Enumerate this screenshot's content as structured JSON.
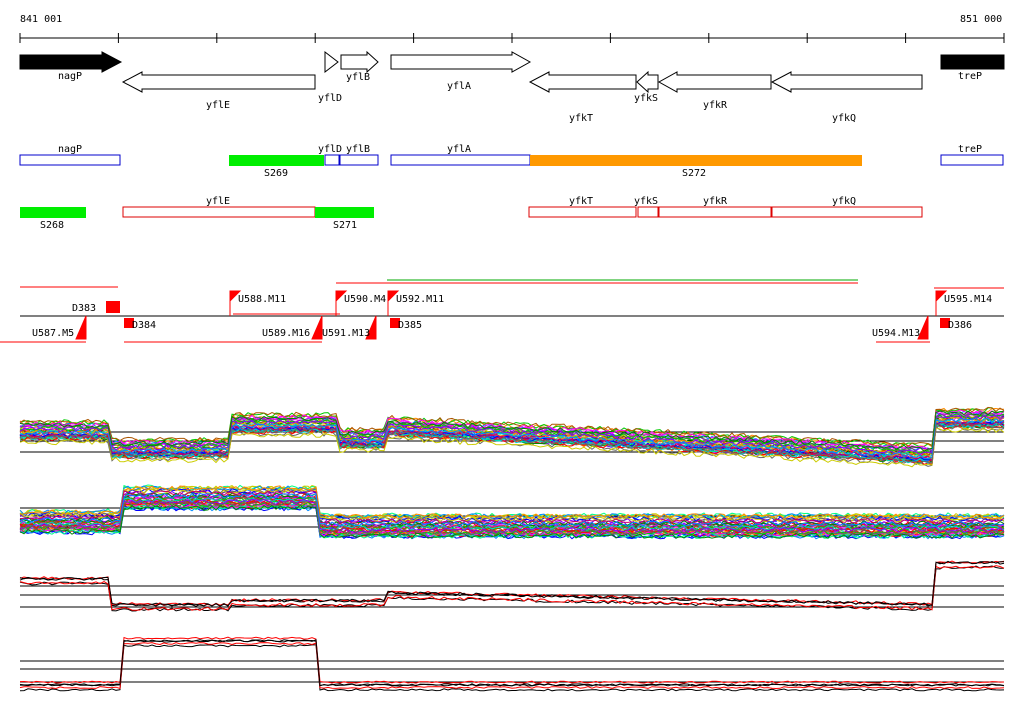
{
  "ruler": {
    "start_label": "841 001",
    "end_label": "851 000"
  },
  "genes": [
    {
      "name": "nagP",
      "strand": "+",
      "filled": true
    },
    {
      "name": "yflE",
      "strand": "-"
    },
    {
      "name": "yflD",
      "strand": "+"
    },
    {
      "name": "yflB",
      "strand": "+"
    },
    {
      "name": "yflA",
      "strand": "+"
    },
    {
      "name": "yfkT",
      "strand": "-"
    },
    {
      "name": "yfkS",
      "strand": "-"
    },
    {
      "name": "yfkR",
      "strand": "-"
    },
    {
      "name": "yfkQ",
      "strand": "-"
    },
    {
      "name": "treP",
      "strand": "+",
      "filled": true
    }
  ],
  "forward_track": [
    {
      "name": "nagP",
      "type": "gene"
    },
    {
      "name": "S269",
      "type": "segment",
      "color": "#00ee00"
    },
    {
      "name": "yflD",
      "type": "gene"
    },
    {
      "name": "yflB",
      "type": "gene"
    },
    {
      "name": "yflA",
      "type": "gene"
    },
    {
      "name": "S272",
      "type": "segment",
      "color": "#ff9900"
    },
    {
      "name": "treP",
      "type": "gene"
    }
  ],
  "reverse_track": [
    {
      "name": "S268",
      "type": "segment",
      "color": "#00ee00"
    },
    {
      "name": "yflE",
      "type": "gene"
    },
    {
      "name": "S271",
      "type": "segment",
      "color": "#00ee00"
    },
    {
      "name": "yfkT",
      "type": "gene"
    },
    {
      "name": "yfkS",
      "type": "gene"
    },
    {
      "name": "yfkR",
      "type": "gene"
    },
    {
      "name": "yfkQ",
      "type": "gene"
    }
  ],
  "markers_up": [
    "D383",
    "U588.M11",
    "U590.M4",
    "U592.M11",
    "U595.M14"
  ],
  "markers_down": [
    "U587.M5",
    "D384",
    "U589.M16",
    "U591.M13",
    "D385",
    "U594.M13",
    "D386"
  ],
  "colors": {
    "gene_outline": "#0000cc",
    "reverse_outline": "#dd0000",
    "marker": "#ff0000",
    "segment_green": "#00ee00",
    "segment_orange": "#ff9900"
  }
}
